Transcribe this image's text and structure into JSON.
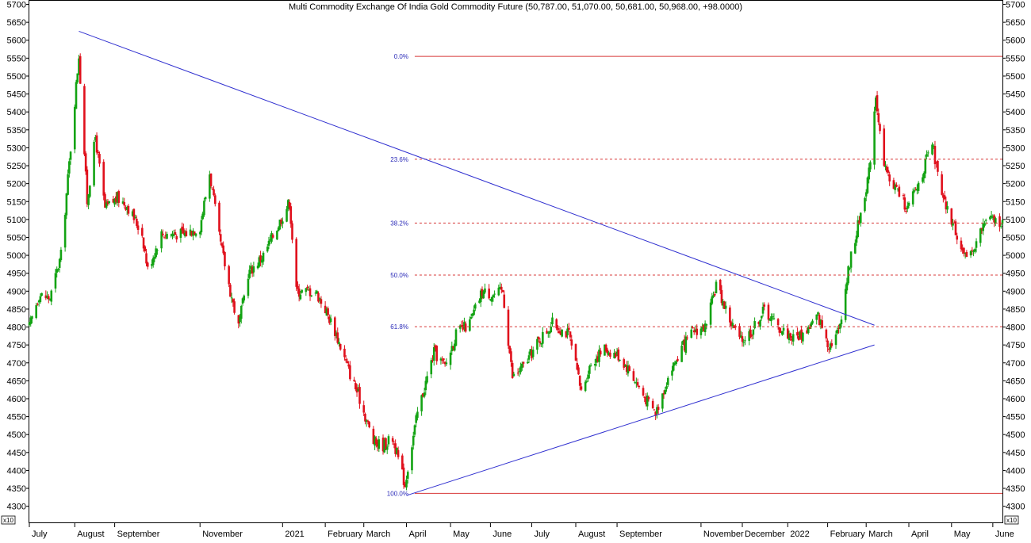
{
  "chart_data": {
    "type": "candlestick",
    "title": "Multi Commodity Exchange Of India Gold Commodity Future (50,787.00, 51,070.00, 50,681.00, 50,968.00, +98.0000)",
    "y_multiplier_label": "x10",
    "ylim": [
      4255,
      5710
    ],
    "xlim": [
      "2020-07-01",
      "2022-06-08"
    ],
    "y_ticks": [
      4300,
      4350,
      4400,
      4450,
      4500,
      4550,
      4600,
      4650,
      4700,
      4750,
      4800,
      4850,
      4900,
      4950,
      5000,
      5050,
      5100,
      5150,
      5200,
      5250,
      5300,
      5350,
      5400,
      5450,
      5500,
      5550,
      5600,
      5650,
      5700
    ],
    "x_ticks": [
      {
        "label": "July",
        "date": "2020-07-01"
      },
      {
        "label": "August",
        "date": "2020-08-03"
      },
      {
        "label": "September",
        "date": "2020-09-01"
      },
      {
        "label": "November",
        "date": "2020-11-02"
      },
      {
        "label": "2021",
        "date": "2021-01-01"
      },
      {
        "label": "February",
        "date": "2021-02-01"
      },
      {
        "label": "March",
        "date": "2021-03-01"
      },
      {
        "label": "April",
        "date": "2021-04-01"
      },
      {
        "label": "May",
        "date": "2021-05-03"
      },
      {
        "label": "June",
        "date": "2021-06-01"
      },
      {
        "label": "July",
        "date": "2021-07-01"
      },
      {
        "label": "August",
        "date": "2021-08-02"
      },
      {
        "label": "September",
        "date": "2021-09-01"
      },
      {
        "label": "November",
        "date": "2021-11-01"
      },
      {
        "label": "December",
        "date": "2021-12-01"
      },
      {
        "label": "2022",
        "date": "2022-01-03"
      },
      {
        "label": "February",
        "date": "2022-02-01"
      },
      {
        "label": "March",
        "date": "2022-03-01"
      },
      {
        "label": "April",
        "date": "2022-04-01"
      },
      {
        "label": "May",
        "date": "2022-05-02"
      },
      {
        "label": "June",
        "date": "2022-06-01"
      }
    ],
    "close_anchors": [
      [
        "2020-07-01",
        4800
      ],
      [
        "2020-07-08",
        4890
      ],
      [
        "2020-07-16",
        4880
      ],
      [
        "2020-07-24",
        5000
      ],
      [
        "2020-07-31",
        5300
      ],
      [
        "2020-08-06",
        5560
      ],
      [
        "2020-08-12",
        5150
      ],
      [
        "2020-08-18",
        5330
      ],
      [
        "2020-08-25",
        5130
      ],
      [
        "2020-09-03",
        5160
      ],
      [
        "2020-09-10",
        5140
      ],
      [
        "2020-09-21",
        5060
      ],
      [
        "2020-09-25",
        4960
      ],
      [
        "2020-10-05",
        5060
      ],
      [
        "2020-10-12",
        5060
      ],
      [
        "2020-10-22",
        5060
      ],
      [
        "2020-11-02",
        5080
      ],
      [
        "2020-11-09",
        5230
      ],
      [
        "2020-11-16",
        5050
      ],
      [
        "2020-11-24",
        4900
      ],
      [
        "2020-11-30",
        4800
      ],
      [
        "2020-12-07",
        4950
      ],
      [
        "2020-12-18",
        5000
      ],
      [
        "2021-01-06",
        5150
      ],
      [
        "2021-01-11",
        4900
      ],
      [
        "2021-01-25",
        4900
      ],
      [
        "2021-02-01",
        4850
      ],
      [
        "2021-02-08",
        4790
      ],
      [
        "2021-02-18",
        4680
      ],
      [
        "2021-02-26",
        4600
      ],
      [
        "2021-03-08",
        4480
      ],
      [
        "2021-03-15",
        4470
      ],
      [
        "2021-03-22",
        4490
      ],
      [
        "2021-03-31",
        4360
      ],
      [
        "2021-04-02",
        4410
      ],
      [
        "2021-04-09",
        4560
      ],
      [
        "2021-04-21",
        4730
      ],
      [
        "2021-04-29",
        4690
      ],
      [
        "2021-05-07",
        4780
      ],
      [
        "2021-05-17",
        4810
      ],
      [
        "2021-05-26",
        4900
      ],
      [
        "2021-06-03",
        4890
      ],
      [
        "2021-06-10",
        4900
      ],
      [
        "2021-06-17",
        4660
      ],
      [
        "2021-06-25",
        4690
      ],
      [
        "2021-07-06",
        4760
      ],
      [
        "2021-07-16",
        4810
      ],
      [
        "2021-07-28",
        4780
      ],
      [
        "2021-08-06",
        4620
      ],
      [
        "2021-08-13",
        4700
      ],
      [
        "2021-08-23",
        4740
      ],
      [
        "2021-09-02",
        4720
      ],
      [
        "2021-09-10",
        4680
      ],
      [
        "2021-09-20",
        4610
      ],
      [
        "2021-09-29",
        4560
      ],
      [
        "2021-10-08",
        4660
      ],
      [
        "2021-10-18",
        4740
      ],
      [
        "2021-10-27",
        4790
      ],
      [
        "2021-11-05",
        4800
      ],
      [
        "2021-11-12",
        4920
      ],
      [
        "2021-11-23",
        4810
      ],
      [
        "2021-11-30",
        4760
      ],
      [
        "2021-12-08",
        4790
      ],
      [
        "2021-12-17",
        4850
      ],
      [
        "2021-12-27",
        4800
      ],
      [
        "2022-01-07",
        4770
      ],
      [
        "2022-01-14",
        4780
      ],
      [
        "2022-01-25",
        4830
      ],
      [
        "2022-02-02",
        4750
      ],
      [
        "2022-02-09",
        4790
      ],
      [
        "2022-02-17",
        4980
      ],
      [
        "2022-02-24",
        5100
      ],
      [
        "2022-03-03",
        5230
      ],
      [
        "2022-03-08",
        5450
      ],
      [
        "2022-03-14",
        5240
      ],
      [
        "2022-03-24",
        5180
      ],
      [
        "2022-03-31",
        5130
      ],
      [
        "2022-04-08",
        5200
      ],
      [
        "2022-04-18",
        5310
      ],
      [
        "2022-04-25",
        5160
      ],
      [
        "2022-05-04",
        5080
      ],
      [
        "2022-05-13",
        4980
      ],
      [
        "2022-05-20",
        5040
      ],
      [
        "2022-05-27",
        5100
      ],
      [
        "2022-06-08",
        5095
      ]
    ],
    "trendlines": [
      {
        "name": "upper",
        "start": [
          "2020-08-06",
          5625
        ],
        "end": [
          "2022-03-07",
          4805
        ]
      },
      {
        "name": "lower",
        "start": [
          "2021-04-01",
          4330
        ],
        "end": [
          "2022-03-07",
          4750
        ]
      }
    ],
    "fibonacci": {
      "start_date": "2021-04-07",
      "levels": [
        {
          "label": "0.0%",
          "value": 5555
        },
        {
          "label": "23.6%",
          "value": 5268
        },
        {
          "label": "38.2%",
          "value": 5090
        },
        {
          "label": "50.0%",
          "value": 4945
        },
        {
          "label": "61.8%",
          "value": 4801
        },
        {
          "label": "100.0%",
          "value": 4336
        }
      ]
    },
    "colors": {
      "up": "#13a313",
      "down": "#e0101c",
      "trendline": "#3030d0",
      "fib": "#d83838",
      "fib_label": "#2a2ab8"
    }
  }
}
